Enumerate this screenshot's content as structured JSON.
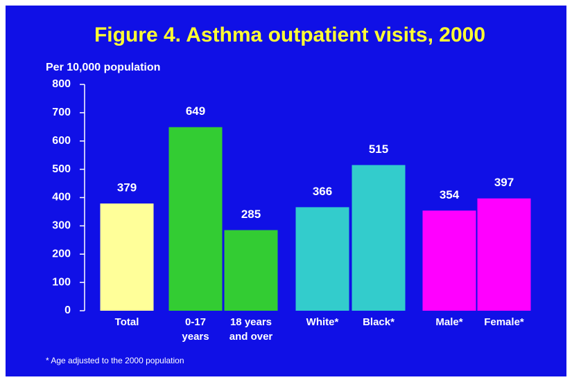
{
  "chart_data": {
    "type": "bar",
    "title": "Figure 4. Asthma outpatient visits, 2000",
    "y_label": "Per 10,000 population",
    "categories": [
      "Total",
      "0-17\nyears",
      "18 years\nand over",
      "White*",
      "Black*",
      "Male*",
      "Female*"
    ],
    "values": [
      379,
      649,
      285,
      366,
      515,
      354,
      397
    ],
    "colors": [
      "#ffff99",
      "#33cc33",
      "#33cc33",
      "#33cccc",
      "#33cccc",
      "#ff00ff",
      "#ff00ff"
    ],
    "ylim": [
      0,
      800
    ],
    "yticks": [
      0,
      100,
      200,
      300,
      400,
      500,
      600,
      700,
      800
    ],
    "footnote": "* Age adjusted to the 2000 population"
  }
}
